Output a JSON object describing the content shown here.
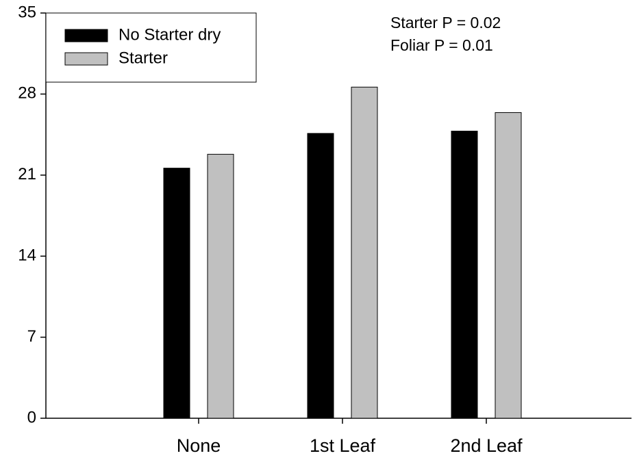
{
  "chart_data": {
    "type": "bar",
    "categories": [
      "None",
      "1st Leaf",
      "2nd Leaf"
    ],
    "series": [
      {
        "name": "No Starter dry",
        "color": "#000000",
        "values": [
          21.6,
          24.6,
          24.8
        ]
      },
      {
        "name": "Starter",
        "color": "#c0c0c0",
        "values": [
          22.8,
          28.6,
          26.4
        ]
      }
    ],
    "annotations": [
      "Starter P = 0.02",
      "Foliar P = 0.01"
    ],
    "ylim": [
      0,
      35
    ],
    "yticks": [
      0,
      7,
      14,
      21,
      28,
      35
    ],
    "grid": false,
    "legend": "top-left"
  }
}
